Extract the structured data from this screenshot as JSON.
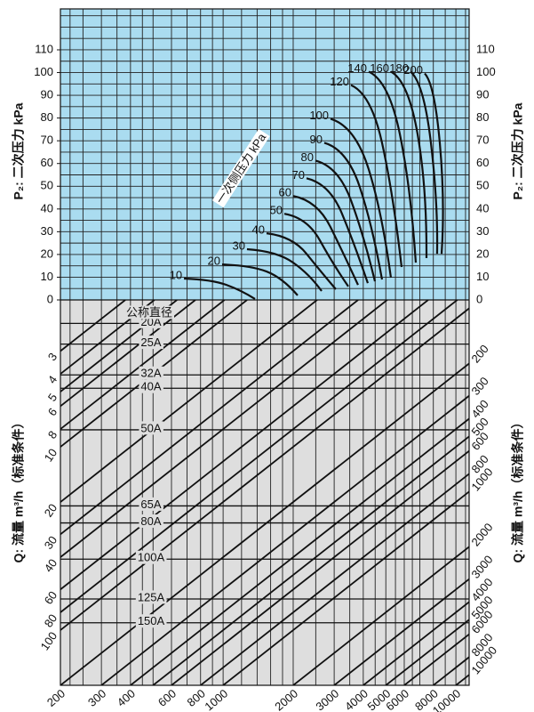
{
  "chart_data": {
    "type": "nomograph",
    "xscale": "log",
    "xlim": [
      200,
      11400
    ],
    "xgrid": [
      220,
      250,
      300,
      350,
      400,
      450,
      500,
      600,
      700,
      800,
      900,
      1000,
      1200,
      1400,
      1600,
      1800,
      2000,
      2500,
      3000,
      3500,
      4000,
      4500,
      5000,
      5500,
      6000,
      6500,
      7000,
      8000,
      9000,
      10000,
      11000
    ],
    "upper": {
      "y_label": "P₂: 二次压力 kPa",
      "background": "#aadcf0",
      "ylim": [
        0,
        128
      ],
      "yticks": [
        0,
        10,
        20,
        30,
        40,
        50,
        60,
        70,
        80,
        90,
        100,
        110
      ],
      "ygrid": [
        5,
        10,
        15,
        20,
        25,
        30,
        35,
        40,
        45,
        50,
        55,
        60,
        65,
        70,
        75,
        80,
        85,
        90,
        95,
        100,
        105,
        110,
        115,
        120,
        125
      ],
      "curve_title": "一次侧压力 kPa",
      "color": "#111111",
      "series": [
        {
          "name": "10",
          "x": [
            679,
            1034,
            1371
          ],
          "values": [
            9.4,
            6.6,
            0.4
          ]
        },
        {
          "name": "20",
          "x": [
            990,
            1537,
            2090
          ],
          "values": [
            15.6,
            12.5,
            2.0
          ]
        },
        {
          "name": "30",
          "x": [
            1266,
            2000,
            2650
          ],
          "values": [
            22.3,
            16.4,
            3.9
          ]
        },
        {
          "name": "40",
          "x": [
            1537,
            2282,
            3050
          ],
          "values": [
            29.3,
            20.3,
            4.7
          ]
        },
        {
          "name": "50",
          "x": [
            1832,
            2604,
            3450
          ],
          "values": [
            37.9,
            26.2,
            5.9
          ]
        },
        {
          "name": "60",
          "x": [
            2000,
            2894,
            3798
          ],
          "values": [
            45.7,
            32.0,
            6.6
          ]
        },
        {
          "name": "70",
          "x": [
            2282,
            3242,
            4184
          ],
          "values": [
            53.5,
            37.9,
            7.4
          ]
        },
        {
          "name": "80",
          "x": [
            2492,
            3542,
            4490
          ],
          "values": [
            61.3,
            43.8,
            8.2
          ]
        },
        {
          "name": "90",
          "x": [
            2720,
            3866,
            4816
          ],
          "values": [
            69.1,
            49.6,
            9.0
          ]
        },
        {
          "name": "100",
          "x": [
            2894,
            4222,
            5258
          ],
          "values": [
            79.7,
            57.4,
            9.8
          ]
        },
        {
          "name": "120",
          "x": [
            3542,
            4816,
            5844
          ],
          "values": [
            94.5,
            69.1,
            14.5
          ]
        },
        {
          "name": "140",
          "x": [
            4222,
            5742,
            6726
          ],
          "values": [
            100.4,
            73.0,
            16.4
          ]
        },
        {
          "name": "160",
          "x": [
            5258,
            6844,
            7474
          ],
          "values": [
            100.4,
            73.0,
            18.4
          ]
        },
        {
          "name": "180",
          "x": [
            6380,
            7810,
            8304
          ],
          "values": [
            100.4,
            69.1,
            20.3
          ]
        },
        {
          "name": "200",
          "x": [
            7344,
            8528,
            8682
          ],
          "values": [
            99.6,
            69.1,
            20.3
          ]
        }
      ]
    },
    "lower": {
      "q_label": "Q: 流量 m³/h（标准条件）",
      "background": "#dedede",
      "left_ticks": [
        3,
        4,
        5,
        6,
        8,
        10,
        20,
        30,
        40,
        60,
        80,
        100
      ],
      "right_ticks": [
        200,
        300,
        400,
        500,
        600,
        800,
        1000,
        2000,
        3000,
        4000,
        5000,
        6000,
        8000,
        10000
      ],
      "bottom_ticks": [
        200,
        300,
        400,
        600,
        800,
        1000,
        2000,
        3000,
        4000,
        5000,
        6000,
        8000,
        10000
      ],
      "pipe_title": "公称直径",
      "pipes": {
        "categories": [
          "20A",
          "25A",
          "32A",
          "40A",
          "50A",
          "65A",
          "80A",
          "100A",
          "125A",
          "150A"
        ],
        "values": [
          2.12,
          2.75,
          4.05,
          4.79,
          8.07,
          21.0,
          26.0,
          41.0,
          67.6,
          91.2
        ]
      }
    }
  }
}
